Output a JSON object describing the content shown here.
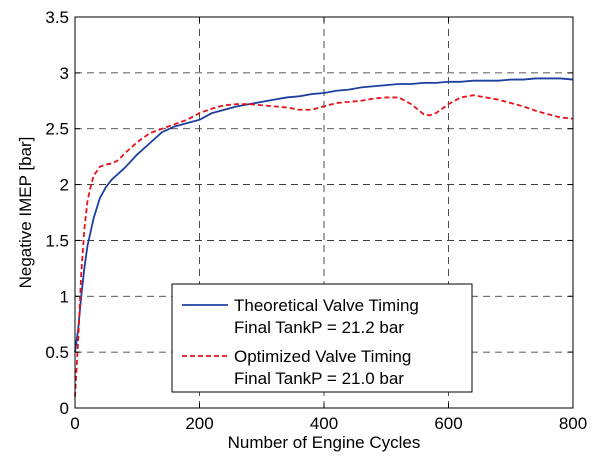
{
  "chart_data": {
    "type": "line",
    "title": "",
    "xlabel": "Number of Engine Cycles",
    "ylabel": "Negative IMEP [bar]",
    "xlim": [
      0,
      800
    ],
    "ylim": [
      0,
      3.5
    ],
    "xticks": [
      0,
      200,
      400,
      600,
      800
    ],
    "yticks": [
      0,
      0.5,
      1,
      1.5,
      2,
      2.5,
      3,
      3.5
    ],
    "xtick_labels": [
      "0",
      "200",
      "400",
      "600",
      "800"
    ],
    "ytick_labels": [
      "0",
      "0.5",
      "1",
      "1.5",
      "2",
      "2.5",
      "3",
      "3.5"
    ],
    "grid": true,
    "legend_position": "bottom-center",
    "series": [
      {
        "name": "Theoretical Valve Timing",
        "name_line2": "Final TankP = 21.2 bar",
        "color": "#1f3fa0",
        "dash": "solid",
        "x": [
          0,
          5,
          10,
          15,
          20,
          30,
          40,
          50,
          60,
          70,
          80,
          100,
          120,
          140,
          160,
          180,
          200,
          220,
          240,
          260,
          280,
          300,
          320,
          340,
          360,
          380,
          400,
          420,
          440,
          460,
          480,
          500,
          520,
          540,
          560,
          580,
          600,
          620,
          640,
          660,
          680,
          700,
          720,
          740,
          760,
          780,
          800
        ],
        "y": [
          0.5,
          0.7,
          1.0,
          1.25,
          1.45,
          1.7,
          1.88,
          1.98,
          2.05,
          2.1,
          2.15,
          2.27,
          2.37,
          2.47,
          2.52,
          2.55,
          2.58,
          2.64,
          2.67,
          2.7,
          2.72,
          2.74,
          2.76,
          2.78,
          2.79,
          2.81,
          2.82,
          2.84,
          2.85,
          2.87,
          2.88,
          2.89,
          2.9,
          2.9,
          2.91,
          2.91,
          2.92,
          2.92,
          2.93,
          2.93,
          2.93,
          2.94,
          2.94,
          2.95,
          2.95,
          2.95,
          2.94
        ]
      },
      {
        "name": "Optimized Valve Timing",
        "name_line2": "Final TankP = 21.0 bar",
        "color": "#e8101a",
        "dash": "dashed",
        "x": [
          0,
          5,
          10,
          15,
          20,
          25,
          30,
          40,
          50,
          60,
          70,
          80,
          100,
          120,
          140,
          160,
          180,
          200,
          220,
          240,
          260,
          280,
          300,
          320,
          340,
          360,
          380,
          400,
          420,
          440,
          460,
          480,
          500,
          520,
          540,
          560,
          570,
          580,
          600,
          620,
          640,
          660,
          680,
          700,
          720,
          740,
          760,
          780,
          800
        ],
        "y": [
          0.1,
          0.6,
          1.2,
          1.6,
          1.85,
          1.98,
          2.08,
          2.16,
          2.18,
          2.19,
          2.22,
          2.28,
          2.38,
          2.46,
          2.5,
          2.54,
          2.58,
          2.64,
          2.68,
          2.71,
          2.72,
          2.72,
          2.71,
          2.7,
          2.69,
          2.67,
          2.67,
          2.7,
          2.73,
          2.74,
          2.75,
          2.77,
          2.78,
          2.78,
          2.72,
          2.63,
          2.62,
          2.64,
          2.72,
          2.78,
          2.8,
          2.78,
          2.76,
          2.73,
          2.7,
          2.66,
          2.63,
          2.6,
          2.59
        ]
      }
    ]
  }
}
